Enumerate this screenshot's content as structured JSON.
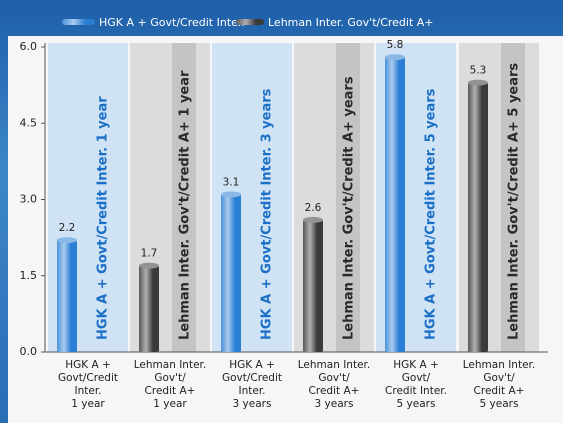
{
  "chart_data": {
    "type": "bar",
    "categories": [
      "HGK A +\nGovt/Credit\nInter.\n1 year",
      "Lehman Inter.\nGov't/\nCredit A+\n1 year",
      "HGK A +\nGovt/Credit\nInter.\n3 years",
      "Lehman Inter.\nGov't/\nCredit A+\n3 years",
      "HGK A +\nGovt/\nCredit Inter.\n5 years",
      "Lehman Inter.\nGov't/\nCredit A+\n5 years"
    ],
    "panel_labels": [
      "HGK A + Govt/Credit Inter. 1 year",
      "Lehman Inter. Gov't/Credit A+ 1 year",
      "HGK A + Govt/Credit Inter. 3 years",
      "Lehman Inter. Gov't/Credit A+ years",
      "HGK A + Govt/Credit Inter. 5 years",
      "Lehman Inter. Gov't/Credit A+ 5 years"
    ],
    "series": [
      {
        "name": "HGK A + Govt/Credit Inter.",
        "color": "#2a7fd4",
        "values": [
          2.2,
          null,
          3.1,
          null,
          5.8,
          null
        ]
      },
      {
        "name": "Lehman Inter. Gov't/Credit A+",
        "color": "#3a3a3a",
        "values": [
          null,
          1.7,
          null,
          2.6,
          null,
          5.3
        ]
      }
    ],
    "ylim": [
      0,
      6
    ],
    "yticks": [
      {
        "value": 0,
        "label": "0.0"
      },
      1.5,
      {
        "value": 3,
        "label": "3.0"
      },
      4.5,
      {
        "value": 6,
        "label": "6.0"
      }
    ]
  }
}
